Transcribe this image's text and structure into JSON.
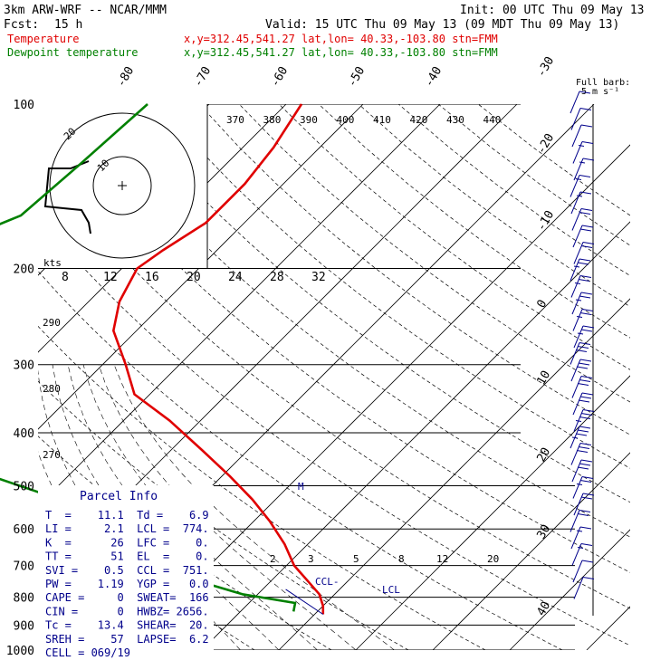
{
  "header": {
    "model": "3km ARW-WRF -- NCAR/MMM",
    "init": "Init: 00 UTC Thu 09 May 13",
    "fcst_label": "Fcst:",
    "fcst_value": "15 h",
    "valid": "Valid: 15 UTC Thu 09 May 13 (09 MDT Thu 09 May 13)"
  },
  "legend": [
    {
      "name": "Temperature",
      "info": "x,y=312.45,541.27   lat,lon= 40.33,-103.80  stn=FMM",
      "color": "#e00000"
    },
    {
      "name": "Dewpoint temperature",
      "info": "x,y=312.45,541.27   lat,lon= 40.33,-103.80  stn=FMM",
      "color": "#008000"
    }
  ],
  "barb_legend": {
    "line1": "Full barb:",
    "line2": "5 m s⁻¹"
  },
  "parcel_info": {
    "title": "Parcel Info",
    "rows": [
      "T  =    11.1  Td =    6.9",
      "LI =     2.1  LCL =  774.",
      "K  =      26  LFC =    0.",
      "TT =      51  EL  =    0.",
      "SVI =    0.5  CCL =  751.",
      "PW =    1.19  YGP =   0.0",
      "CAPE =     0  SWEAT=  166",
      "CIN =      0  HWBZ= 2656.",
      "Tc =    13.4  SHEAR=  20.",
      "SREH =    57  LAPSE=  6.2",
      "CELL = 069/19"
    ]
  },
  "hodograph": {
    "kts_label": "kts",
    "ring_labels": [
      "8",
      "12",
      "16",
      "20",
      "24",
      "28",
      "32"
    ],
    "circle_labels": [
      "20",
      "10"
    ]
  },
  "annotations": {
    "ccl": "CCL",
    "lcl": "LCL",
    "m": "M",
    "theta_labels": [
      "370",
      "380",
      "390",
      "400",
      "410",
      "420",
      "430",
      "440"
    ],
    "thetae_labels": [
      "290",
      "280",
      "270"
    ],
    "mixing_labels": [
      "2",
      "3",
      "5",
      "8",
      "12",
      "20"
    ]
  },
  "chart_data": {
    "type": "line",
    "title": "",
    "xlabel": "",
    "ylabel": "",
    "pressure_levels": [
      100,
      200,
      300,
      400,
      500,
      600,
      700,
      800,
      900,
      1000
    ],
    "pressure_tick_labels": [
      "100",
      "200",
      "300",
      "400",
      "500",
      "600",
      "700",
      "800",
      "900",
      "1000"
    ],
    "temperature_tick_labels": [
      "-80",
      "-70",
      "-60",
      "-50",
      "-40",
      "-30",
      "-20",
      "-10",
      "0",
      "10",
      "20",
      "30",
      "40"
    ],
    "temperature_ticks": [
      -80,
      -70,
      -60,
      -50,
      -40,
      -30,
      -20,
      -10,
      0,
      10,
      20,
      30,
      40
    ],
    "ylim": [
      1000,
      100
    ],
    "series": [
      {
        "name": "Temperature",
        "color": "#e00000",
        "points": [
          [
            100,
            -58
          ],
          [
            120,
            -56
          ],
          [
            140,
            -55
          ],
          [
            165,
            -55
          ],
          [
            185,
            -57
          ],
          [
            200,
            -58
          ],
          [
            230,
            -56
          ],
          [
            260,
            -53
          ],
          [
            300,
            -47
          ],
          [
            340,
            -42
          ],
          [
            380,
            -34
          ],
          [
            430,
            -26
          ],
          [
            480,
            -19
          ],
          [
            530,
            -13
          ],
          [
            580,
            -8
          ],
          [
            640,
            -3
          ],
          [
            700,
            1
          ],
          [
            750,
            5
          ],
          [
            790,
            8
          ],
          [
            830,
            10
          ],
          [
            860,
            11.1
          ]
        ]
      },
      {
        "name": "Dewpoint temperature",
        "color": "#008000",
        "points": [
          [
            100,
            -78
          ],
          [
            130,
            -79
          ],
          [
            160,
            -80
          ],
          [
            175,
            -84
          ],
          [
            185,
            -93
          ],
          [
            200,
            -90
          ],
          [
            230,
            -82
          ],
          [
            260,
            -78
          ],
          [
            300,
            -69
          ],
          [
            340,
            -63
          ],
          [
            380,
            -64
          ],
          [
            430,
            -59
          ],
          [
            480,
            -50
          ],
          [
            530,
            -38
          ],
          [
            580,
            -29
          ],
          [
            640,
            -21
          ],
          [
            700,
            -15
          ],
          [
            750,
            -9
          ],
          [
            790,
            -2
          ],
          [
            820,
            6
          ],
          [
            850,
            6.9
          ]
        ]
      }
    ],
    "wind_barbs_kts": [
      10,
      10,
      10,
      15,
      15,
      15,
      15,
      20,
      20,
      20,
      25,
      25,
      25,
      25,
      25,
      30,
      30,
      30,
      30,
      35,
      35,
      30,
      30,
      25,
      20,
      20,
      15,
      15,
      10,
      10
    ]
  }
}
